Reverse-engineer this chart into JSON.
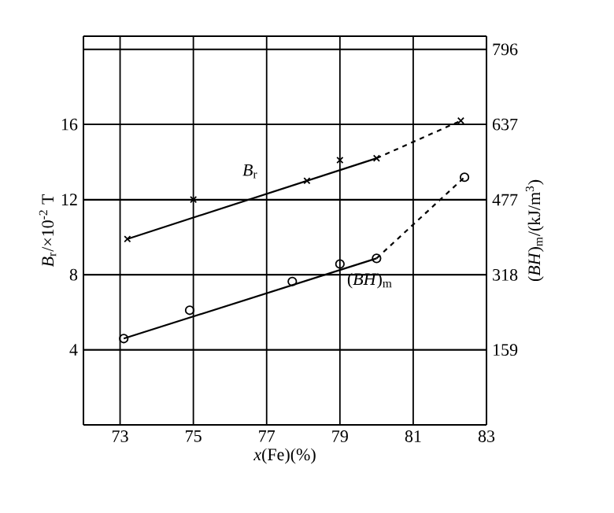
{
  "chart_data": {
    "type": "scatter",
    "xlabel": "*x*(Fe)(%)",
    "ylabel": "*B*$_{r}$/×10$^{-2}$ T",
    "y2label": "(*BH*)$_{m}$/(kJ/m$^{3}$)",
    "xlim": [
      72,
      83
    ],
    "xticks": [
      73,
      75,
      77,
      79,
      81,
      83
    ],
    "ylim": [
      0,
      20.7
    ],
    "yticks": [
      4,
      8,
      12,
      16
    ],
    "y2lim": [
      0,
      824
    ],
    "y2ticks": [
      159,
      318,
      477,
      637,
      796
    ],
    "grid": true,
    "legend": false,
    "series": [
      {
        "name": "*B*$_{r}$",
        "marker": "cross",
        "color": "#000000",
        "x": [
          73.2,
          75,
          78.1,
          79,
          80,
          82.3
        ],
        "values": [
          9.9,
          12.0,
          13.0,
          14.1,
          14.2,
          16.2
        ]
      },
      {
        "type": "line",
        "line_style": "solid",
        "color": "#000000",
        "x": [
          73.2,
          80
        ],
        "values": [
          9.9,
          14.2
        ]
      },
      {
        "type": "line",
        "line_style": "dashed",
        "color": "#000000",
        "x": [
          80,
          82.3
        ],
        "values": [
          14.2,
          16.2
        ]
      },
      {
        "name": "(*BH*)$_{m}$",
        "marker": "circle",
        "axis": "y2",
        "color": "#000000",
        "x": [
          73.1,
          74.9,
          77.7,
          79,
          80,
          82.4
        ],
        "values": [
          183,
          243,
          304,
          341,
          353,
          525
        ]
      },
      {
        "type": "line",
        "line_style": "solid",
        "axis": "y2",
        "color": "#000000",
        "x": [
          73.1,
          80
        ],
        "values": [
          183,
          353
        ]
      },
      {
        "type": "line",
        "line_style": "dashed",
        "axis": "y2",
        "color": "#000000",
        "x": [
          80,
          82.4
        ],
        "values": [
          353,
          525
        ]
      }
    ]
  }
}
